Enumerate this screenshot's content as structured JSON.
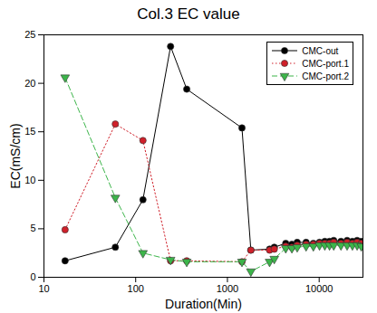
{
  "chart_data": {
    "type": "line",
    "title": "Col.3 EC value",
    "x_label": "Duration(Min)",
    "y_label": "EC(mS/cm)",
    "log": "x",
    "x": [
      17,
      60,
      120,
      240,
      360,
      1440,
      1800,
      2880,
      3240,
      4320,
      5040,
      5760,
      7200,
      8640,
      10080,
      11520,
      12960,
      14400,
      17280,
      20160,
      23040,
      25920,
      28800
    ],
    "series": [
      {
        "name": "CMC-out",
        "color": "#000000",
        "marker": "circle",
        "line_style": "solid",
        "values": [
          1.7,
          3.1,
          8.0,
          23.8,
          19.4,
          15.4,
          2.8,
          2.9,
          3.1,
          3.5,
          3.4,
          3.6,
          3.6,
          3.5,
          3.6,
          3.7,
          3.7,
          3.8,
          3.7,
          3.8,
          3.7,
          3.8,
          3.7
        ]
      },
      {
        "name": "CMC-port.1",
        "color": "#d0202a",
        "marker": "circle",
        "line_style": "dotted",
        "values": [
          4.9,
          15.8,
          14.1,
          1.7,
          1.7,
          1.6,
          2.8,
          2.8,
          2.9,
          3.2,
          3.1,
          3.3,
          3.4,
          3.4,
          3.5,
          3.5,
          3.5,
          3.6,
          3.5,
          3.6,
          3.5,
          3.6,
          3.5
        ]
      },
      {
        "name": "CMC-port.2",
        "color": "#3cb54a",
        "marker": "triangle_down",
        "line_style": "dashed",
        "values": [
          20.6,
          8.2,
          2.5,
          1.8,
          1.6,
          1.6,
          0.6,
          1.6,
          1.9,
          3.0,
          3.0,
          3.1,
          3.2,
          3.2,
          3.3,
          3.3,
          3.3,
          3.3,
          3.3,
          3.3,
          3.3,
          3.3,
          3.2
        ]
      }
    ],
    "xlim": [
      10,
      30000
    ],
    "xticks": [
      10,
      100,
      1000,
      10000
    ],
    "ylim": [
      0,
      25
    ],
    "yticks": [
      0,
      5,
      10,
      15,
      20,
      25
    ],
    "legend": "top-right",
    "grid": false
  }
}
